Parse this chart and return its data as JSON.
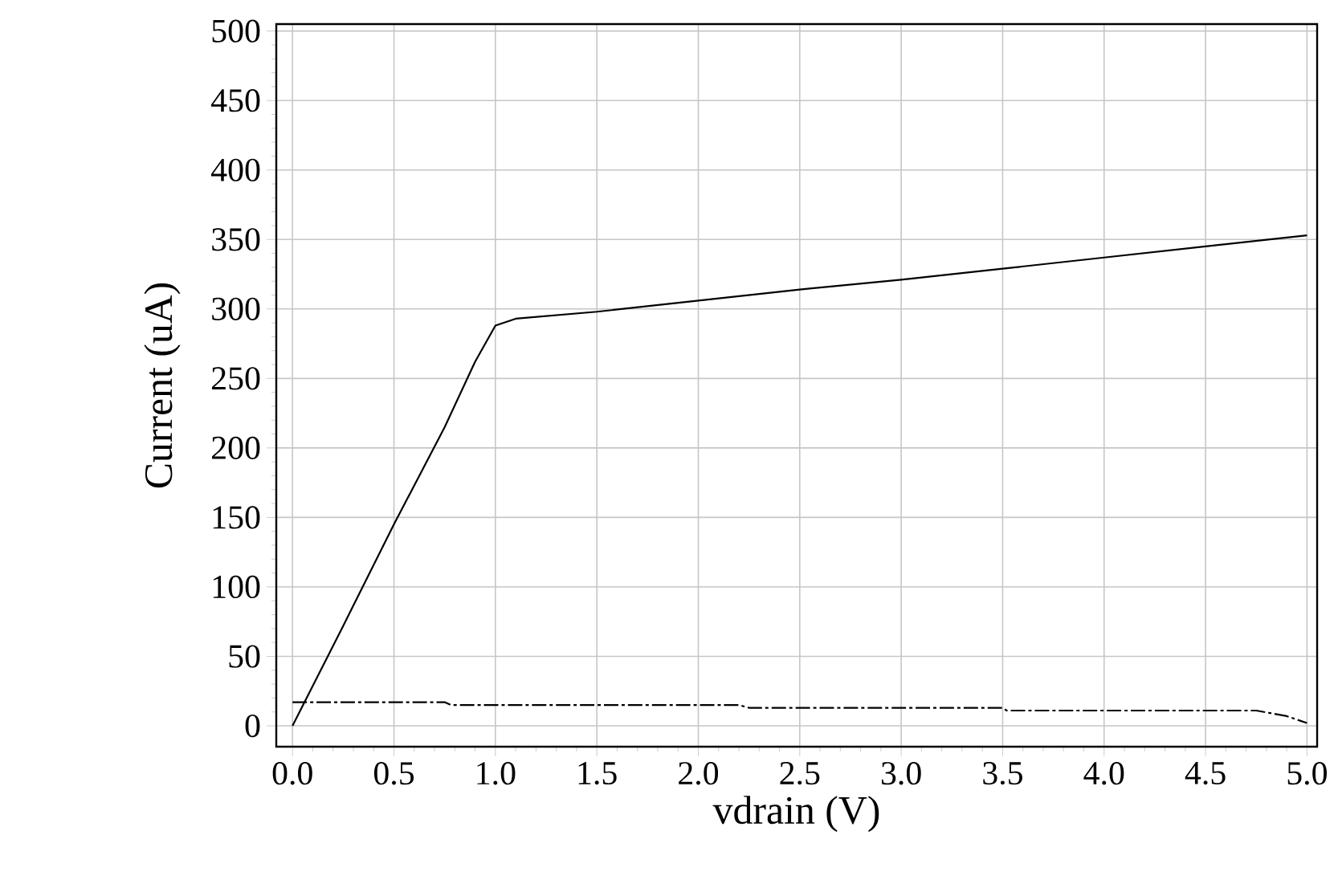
{
  "chart_data": {
    "type": "line",
    "xlabel": "vdrain (V)",
    "ylabel": "Current (uA)",
    "xlim": [
      -0.08,
      5.05
    ],
    "ylim": [
      -15,
      505
    ],
    "xticks": [
      {
        "value": 0,
        "label": "0.0"
      },
      0.5,
      {
        "value": 1,
        "label": "1.0"
      },
      1.5,
      {
        "value": 2,
        "label": "2.0"
      },
      2.5,
      {
        "value": 3,
        "label": "3.0"
      },
      3.5,
      {
        "value": 4,
        "label": "4.0"
      },
      4.5,
      {
        "value": 5,
        "label": "5.0"
      }
    ],
    "yticks": [
      0,
      50,
      100,
      150,
      200,
      250,
      300,
      350,
      400,
      450,
      500
    ],
    "grid": true,
    "marker": "none",
    "series": [
      {
        "color": "#000000",
        "line_style": "solid",
        "x": [
          0,
          0.25,
          0.5,
          0.75,
          0.9,
          1.0,
          1.1,
          1.5,
          2.0,
          2.5,
          3.0,
          3.5,
          4.0,
          4.5,
          5.0
        ],
        "values": [
          0,
          72,
          145,
          215,
          262,
          288,
          293,
          298,
          306,
          314,
          321,
          329,
          337,
          345,
          353
        ]
      },
      {
        "color": "#000000",
        "line_style": "dashed",
        "x": [
          0,
          0.75,
          0.78,
          2.2,
          2.25,
          3.5,
          3.52,
          4.75,
          4.9,
          5.0
        ],
        "values": [
          17,
          17,
          15,
          15,
          13,
          13,
          11,
          11,
          7,
          2
        ]
      }
    ]
  }
}
